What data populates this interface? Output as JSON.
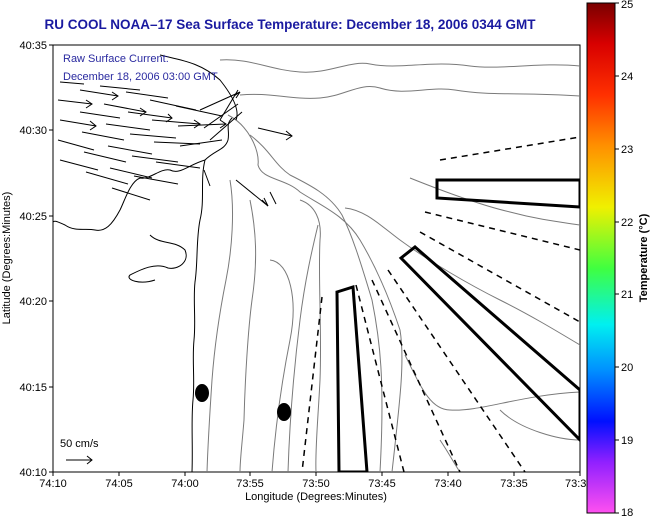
{
  "title": "RU COOL  NOAA–17  Sea Surface Temperature:  December 18, 2006 0344 GMT",
  "annotation": {
    "line1": "Raw Surface Current:",
    "line2": "December 18, 2006 03:00 GMT"
  },
  "scale_label": "50 cm/s",
  "x_axis": {
    "label": "Longitude (Degrees:Minutes)",
    "ticks": [
      "74:10",
      "74:05",
      "74:00",
      "73:55",
      "73:50",
      "73:45",
      "73:40",
      "73:35",
      "73:3"
    ]
  },
  "y_axis": {
    "label": "Latitude (Degrees:Minutes)",
    "ticks": [
      "40:35",
      "40:30",
      "40:25",
      "40:20",
      "40:15",
      "40:10"
    ]
  },
  "colorbar": {
    "label": "Temperature (°C)",
    "ticks": [
      "25",
      "24",
      "23",
      "22",
      "21",
      "20",
      "19",
      "18"
    ],
    "min": 18,
    "max": 25
  },
  "colors": {
    "title": "#1a1aa0",
    "annotation": "#2a2aa0",
    "contour": "#7a7a7a",
    "coast": "#000000"
  }
}
